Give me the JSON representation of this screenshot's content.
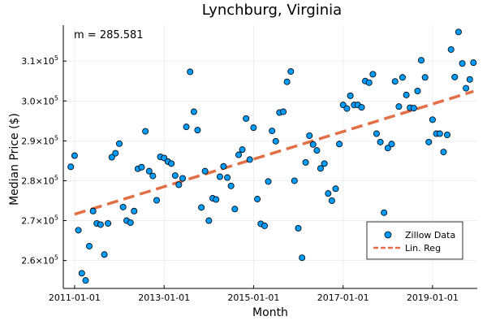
{
  "chart_data": {
    "type": "scatter",
    "title": "Lynchburg, Virginia",
    "xlabel": "Month",
    "ylabel": "Median Price ($)",
    "annotation": "m = 285.581",
    "grid": true,
    "legend_position": "bottom-right",
    "x_ticks": [
      "2011-01-01",
      "2013-01-01",
      "2015-01-01",
      "2017-01-01",
      "2019-01-01"
    ],
    "y_ticks": [
      {
        "value": 260000,
        "base": "2.6×10",
        "exp": "5"
      },
      {
        "value": 270000,
        "base": "2.7×10",
        "exp": "5"
      },
      {
        "value": 280000,
        "base": "2.8×10",
        "exp": "5"
      },
      {
        "value": 290000,
        "base": "2.9×10",
        "exp": "5"
      },
      {
        "value": 300000,
        "base": "3.0×10",
        "exp": "5"
      },
      {
        "value": 310000,
        "base": "3.1×10",
        "exp": "5"
      }
    ],
    "xlim": [
      "2010-10-01",
      "2020-01-01"
    ],
    "ylim": [
      253000,
      319000
    ],
    "series": [
      {
        "name": "Zillow Data",
        "type": "scatter",
        "color": "#009af9",
        "points": [
          [
            "2010-12-01",
            283500
          ],
          [
            "2011-01-01",
            286300
          ],
          [
            "2011-02-01",
            267600
          ],
          [
            "2011-03-01",
            256800
          ],
          [
            "2011-04-01",
            255000
          ],
          [
            "2011-05-01",
            263600
          ],
          [
            "2011-06-01",
            272400
          ],
          [
            "2011-07-01",
            269300
          ],
          [
            "2011-08-01",
            269000
          ],
          [
            "2011-09-01",
            261500
          ],
          [
            "2011-10-01",
            269300
          ],
          [
            "2011-11-01",
            285900
          ],
          [
            "2011-12-01",
            286900
          ],
          [
            "2012-01-01",
            289300
          ],
          [
            "2012-02-01",
            273400
          ],
          [
            "2012-03-01",
            270000
          ],
          [
            "2012-04-01",
            269500
          ],
          [
            "2012-05-01",
            272400
          ],
          [
            "2012-06-01",
            283000
          ],
          [
            "2012-07-01",
            283400
          ],
          [
            "2012-08-01",
            292400
          ],
          [
            "2012-09-01",
            282400
          ],
          [
            "2012-10-01",
            281200
          ],
          [
            "2012-11-01",
            275100
          ],
          [
            "2012-12-01",
            286000
          ],
          [
            "2013-01-01",
            285700
          ],
          [
            "2013-02-01",
            284800
          ],
          [
            "2013-03-01",
            284300
          ],
          [
            "2013-04-01",
            281300
          ],
          [
            "2013-05-01",
            279000
          ],
          [
            "2013-06-01",
            280600
          ],
          [
            "2013-07-01",
            293500
          ],
          [
            "2013-08-01",
            307300
          ],
          [
            "2013-09-01",
            297300
          ],
          [
            "2013-10-01",
            292700
          ],
          [
            "2013-11-01",
            273300
          ],
          [
            "2013-12-01",
            282400
          ],
          [
            "2014-01-01",
            270000
          ],
          [
            "2014-02-01",
            275600
          ],
          [
            "2014-03-01",
            275300
          ],
          [
            "2014-04-01",
            281000
          ],
          [
            "2014-05-01",
            283600
          ],
          [
            "2014-06-01",
            280800
          ],
          [
            "2014-07-01",
            278700
          ],
          [
            "2014-08-01",
            272900
          ],
          [
            "2014-09-01",
            286500
          ],
          [
            "2014-10-01",
            287800
          ],
          [
            "2014-11-01",
            295600
          ],
          [
            "2014-12-01",
            285300
          ],
          [
            "2015-01-01",
            293300
          ],
          [
            "2015-02-01",
            275400
          ],
          [
            "2015-03-01",
            269200
          ],
          [
            "2015-04-01",
            268700
          ],
          [
            "2015-05-01",
            279800
          ],
          [
            "2015-06-01",
            292500
          ],
          [
            "2015-07-01",
            289900
          ],
          [
            "2015-08-01",
            297100
          ],
          [
            "2015-09-01",
            297300
          ],
          [
            "2015-10-01",
            304800
          ],
          [
            "2015-11-01",
            307400
          ],
          [
            "2015-12-01",
            280000
          ],
          [
            "2016-01-01",
            268100
          ],
          [
            "2016-02-01",
            260700
          ],
          [
            "2016-03-01",
            284600
          ],
          [
            "2016-04-01",
            291300
          ],
          [
            "2016-05-01",
            289100
          ],
          [
            "2016-06-01",
            287600
          ],
          [
            "2016-07-01",
            283100
          ],
          [
            "2016-08-01",
            284300
          ],
          [
            "2016-09-01",
            276800
          ],
          [
            "2016-10-01",
            275000
          ],
          [
            "2016-11-01",
            278000
          ],
          [
            "2016-12-01",
            289200
          ],
          [
            "2017-01-01",
            299000
          ],
          [
            "2017-02-01",
            298100
          ],
          [
            "2017-03-01",
            301300
          ],
          [
            "2017-04-01",
            299000
          ],
          [
            "2017-05-01",
            299000
          ],
          [
            "2017-06-01",
            298400
          ],
          [
            "2017-07-01",
            305000
          ],
          [
            "2017-08-01",
            304600
          ],
          [
            "2017-09-01",
            306700
          ],
          [
            "2017-10-01",
            291800
          ],
          [
            "2017-11-01",
            289700
          ],
          [
            "2017-12-01",
            272000
          ],
          [
            "2018-01-01",
            288200
          ],
          [
            "2018-02-01",
            289200
          ],
          [
            "2018-03-01",
            304900
          ],
          [
            "2018-04-01",
            298600
          ],
          [
            "2018-05-01",
            305900
          ],
          [
            "2018-06-01",
            301500
          ],
          [
            "2018-07-01",
            298300
          ],
          [
            "2018-08-01",
            298200
          ],
          [
            "2018-09-01",
            302500
          ],
          [
            "2018-10-01",
            310200
          ],
          [
            "2018-11-01",
            305900
          ],
          [
            "2018-12-01",
            289700
          ],
          [
            "2019-01-01",
            295300
          ],
          [
            "2019-02-01",
            291800
          ],
          [
            "2019-03-01",
            291800
          ],
          [
            "2019-04-01",
            287200
          ],
          [
            "2019-05-01",
            291500
          ],
          [
            "2019-06-01",
            312900
          ],
          [
            "2019-07-01",
            306000
          ],
          [
            "2019-08-01",
            317300
          ],
          [
            "2019-09-01",
            309400
          ],
          [
            "2019-10-01",
            303200
          ],
          [
            "2019-11-01",
            305400
          ],
          [
            "2019-12-01",
            309600
          ]
        ]
      },
      {
        "name": "Lin. Reg",
        "type": "line",
        "color": "#e26f46",
        "dash": "dashed",
        "points": [
          [
            "2011-01-01",
            271600
          ],
          [
            "2019-12-01",
            302400
          ]
        ]
      }
    ]
  }
}
